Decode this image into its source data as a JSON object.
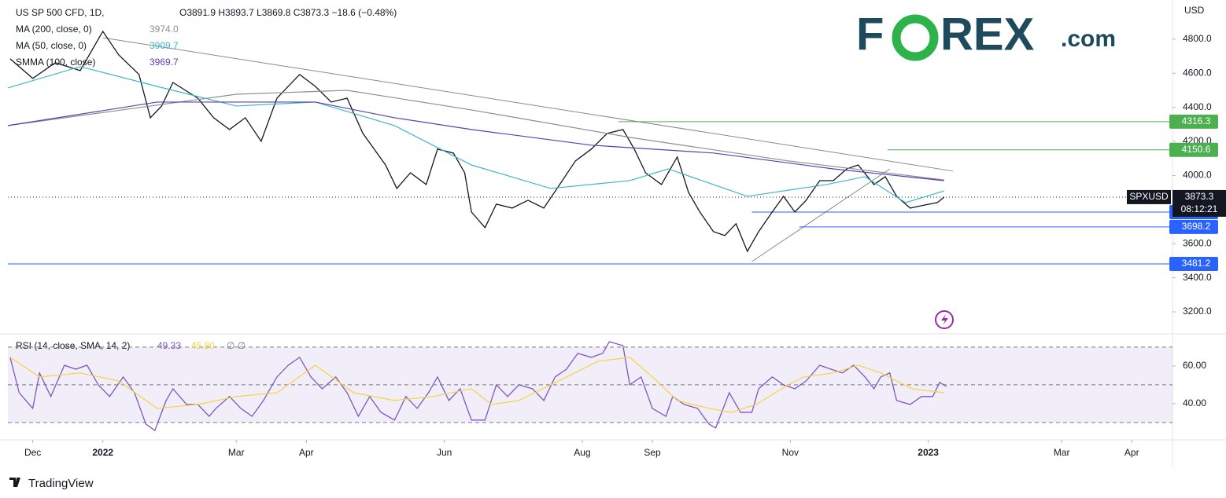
{
  "chart_data": [
    {
      "type": "line",
      "title": "US SP 500 CFD, 1D,",
      "ohlc_label": "O3891.9 H3893.7 L3869.8 C3873.3 −18.6 (−0.48%)",
      "axis_label": "USD",
      "countdown": "08:12:21",
      "xlim": [
        -42,
        473
      ],
      "ylim": [
        3071,
        5030
      ],
      "yticks": [
        3200,
        3400,
        3600,
        3800,
        4000,
        4200,
        4400,
        4600,
        4800
      ],
      "ytick_labels": [
        "3200.0",
        "3400.0",
        "3600.0",
        "3800.0",
        "4000.0",
        "4200.0",
        "4400.0",
        "4600.0",
        "4800.0"
      ],
      "xticks": [
        {
          "value": -31,
          "label": "Dec"
        },
        {
          "value": 0,
          "label": "2022"
        },
        {
          "value": 59,
          "label": "Mar"
        },
        {
          "value": 90,
          "label": "Apr"
        },
        {
          "value": 151,
          "label": "Jun"
        },
        {
          "value": 212,
          "label": "Aug"
        },
        {
          "value": 243,
          "label": "Sep"
        },
        {
          "value": 304,
          "label": "Nov"
        },
        {
          "value": 365,
          "label": "2023"
        },
        {
          "value": 424,
          "label": "Mar"
        },
        {
          "value": 455,
          "label": "Apr"
        }
      ],
      "series": [
        {
          "name": "SPXUSD",
          "color": "#131722",
          "x": [
            -41,
            -31,
            -21,
            -10,
            0,
            7,
            16,
            21,
            26,
            31,
            42,
            49,
            56,
            63,
            70,
            77,
            87,
            94,
            101,
            108,
            115,
            120,
            125,
            130,
            136,
            143,
            148,
            155,
            160,
            163,
            169,
            174,
            181,
            188,
            195,
            202,
            209,
            216,
            223,
            230,
            235,
            240,
            247,
            254,
            259,
            264,
            270,
            275,
            280,
            285,
            290,
            296,
            301,
            306,
            311,
            317,
            323,
            329,
            334,
            341,
            346,
            351,
            357,
            362,
            369,
            372
          ],
          "values": [
            4685,
            4570,
            4662,
            4616,
            4846,
            4708,
            4593,
            4339,
            4408,
            4546,
            4454,
            4339,
            4270,
            4339,
            4201,
            4454,
            4593,
            4523,
            4431,
            4454,
            4247,
            4155,
            4062,
            3924,
            4016,
            3947,
            4155,
            4132,
            4016,
            3786,
            3694,
            3832,
            3809,
            3855,
            3809,
            3947,
            4086,
            4155,
            4247,
            4270,
            4155,
            4016,
            3947,
            4109,
            3901,
            3786,
            3671,
            3648,
            3717,
            3555,
            3671,
            3786,
            3878,
            3786,
            3855,
            3970,
            3970,
            4039,
            4062,
            3947,
            3993,
            3878,
            3809,
            3823,
            3841,
            3873.3
          ]
        },
        {
          "name": "MA (200, close, 0)",
          "legend_value": "3974.0",
          "color": "#8f8f8f",
          "x": [
            -42,
            59,
            108,
            163,
            233,
            303,
            372
          ],
          "values": [
            4293,
            4477,
            4500,
            4385,
            4224,
            4086,
            3974
          ]
        },
        {
          "name": "MA (50, close, 0)",
          "legend_value": "3909.7",
          "color": "#3db8c8",
          "x": [
            -42,
            -10,
            24,
            59,
            94,
            129,
            163,
            198,
            233,
            250,
            285,
            320,
            337,
            355,
            372
          ],
          "values": [
            4514,
            4639,
            4523,
            4408,
            4431,
            4293,
            4062,
            3924,
            3970,
            4039,
            3878,
            3947,
            3993,
            3841,
            3909.7
          ]
        },
        {
          "name": "SMMA (100, close)",
          "legend_value": "3969.7",
          "color": "#5e3fb5",
          "x": [
            -42,
            24,
            94,
            129,
            163,
            216,
            270,
            323,
            372
          ],
          "values": [
            4293,
            4431,
            4431,
            4339,
            4270,
            4178,
            4132,
            4039,
            3969.7
          ]
        }
      ],
      "trendlines": [
        {
          "color": "#8a8a8a",
          "x": [
            0,
            376
          ],
          "values": [
            4809,
            4026
          ]
        },
        {
          "color": "#8a8a8a",
          "x": [
            287,
            348
          ],
          "values": [
            3495,
            4039
          ]
        }
      ],
      "levels": [
        {
          "value": 4316.3,
          "color": "#4caf50",
          "from": 228
        },
        {
          "value": 4150.6,
          "color": "#4caf50",
          "from": 347
        },
        {
          "value": 3785.5,
          "color": "#2962ff",
          "from": 287
        },
        {
          "value": 3698.2,
          "color": "#2962ff",
          "from": 308
        },
        {
          "value": 3481.2,
          "color": "#2962ff"
        }
      ]
    },
    {
      "type": "line",
      "title": "RSI (14, close, SMA, 14, 2)",
      "legend_extra": "∅ ∅",
      "xlim": [
        -42,
        473
      ],
      "ylim": [
        20.8,
        75.8
      ],
      "yticks": [
        {
          "value": 40,
          "label": "40.00"
        },
        {
          "value": 60,
          "label": "60.00"
        }
      ],
      "hlines": [
        30,
        50,
        70
      ],
      "band": [
        30,
        70
      ],
      "series": [
        {
          "name": "RSI",
          "legend_value": "49.33",
          "color": "#7e57c2",
          "x": [
            -41,
            -37,
            -31,
            -28,
            -23,
            -17,
            -12,
            -7,
            -2,
            3,
            9,
            14,
            19,
            23,
            28,
            31,
            37,
            42,
            47,
            50,
            56,
            61,
            66,
            71,
            77,
            82,
            87,
            92,
            97,
            103,
            108,
            113,
            118,
            123,
            129,
            134,
            139,
            144,
            148,
            153,
            158,
            163,
            169,
            174,
            179,
            184,
            190,
            195,
            200,
            205,
            210,
            216,
            221,
            224,
            230,
            233,
            238,
            243,
            249,
            252,
            257,
            263,
            268,
            271,
            277,
            282,
            287,
            290,
            296,
            301,
            306,
            311,
            317,
            322,
            327,
            332,
            337,
            341,
            344,
            348,
            351,
            357,
            362,
            367,
            370,
            373
          ],
          "values": [
            64.6,
            45.8,
            37.5,
            56.3,
            43.8,
            60.4,
            58.3,
            60.4,
            50.0,
            43.8,
            54.2,
            45.8,
            29.2,
            25.8,
            41.7,
            47.9,
            39.6,
            39.6,
            33.3,
            37.5,
            43.8,
            37.5,
            33.3,
            41.7,
            54.2,
            60.4,
            64.6,
            54.2,
            47.9,
            54.2,
            45.8,
            33.3,
            43.8,
            35.4,
            31.3,
            43.8,
            37.5,
            45.8,
            54.2,
            41.7,
            47.9,
            31.3,
            31.3,
            50.0,
            43.8,
            50.0,
            47.9,
            41.7,
            54.2,
            58.3,
            66.7,
            64.6,
            66.7,
            72.9,
            70.8,
            50.0,
            54.2,
            37.5,
            33.3,
            43.8,
            39.6,
            37.5,
            29.2,
            27.1,
            45.8,
            35.4,
            35.4,
            47.9,
            54.2,
            50.0,
            47.9,
            52.1,
            60.4,
            58.3,
            56.3,
            60.4,
            54.2,
            47.9,
            54.2,
            56.3,
            41.7,
            39.6,
            43.8,
            43.8,
            51.3,
            49.2
          ]
        },
        {
          "name": "SMA",
          "legend_value": "45.80",
          "color": "#f5d33f",
          "x": [
            -41,
            -28,
            -10,
            7,
            24,
            42,
            59,
            77,
            94,
            111,
            129,
            146,
            163,
            172,
            184,
            198,
            219,
            233,
            243,
            254,
            268,
            278,
            289,
            303,
            310,
            323,
            334,
            344,
            358,
            372
          ],
          "values": [
            64.6,
            54.2,
            56.3,
            52.1,
            37.5,
            39.6,
            43.8,
            45.8,
            60.4,
            45.8,
            41.7,
            43.8,
            47.9,
            39.6,
            41.7,
            50.0,
            62.5,
            64.6,
            54.2,
            41.7,
            37.5,
            35.4,
            39.6,
            50.0,
            54.2,
            56.3,
            60.4,
            56.3,
            47.9,
            45.8
          ]
        }
      ]
    }
  ],
  "logo": [
    "F",
    "O",
    "REX",
    ".com"
  ],
  "footer": "TradingView"
}
